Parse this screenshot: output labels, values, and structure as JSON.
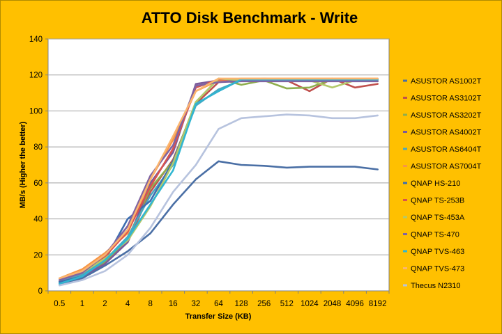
{
  "chart_data": {
    "type": "line",
    "title": "ATTO Disk Benchmark - Write",
    "xlabel": "Transfer Size (KB)",
    "ylabel": "MB/s (Higher the better)",
    "ylim": [
      0,
      140
    ],
    "yticks": [
      0,
      20,
      40,
      60,
      80,
      100,
      120,
      140
    ],
    "grid": "horizontal",
    "legend_position": "right",
    "categories": [
      "0.5",
      "1",
      "2",
      "4",
      "8",
      "16",
      "32",
      "64",
      "128",
      "256",
      "512",
      "1024",
      "2048",
      "4096",
      "8192"
    ],
    "series": [
      {
        "name": "ASUSTOR AS1002T",
        "color": "#4a6fa5",
        "values": [
          4,
          7,
          14,
          22,
          32,
          48,
          62,
          72,
          70,
          69.5,
          68.5,
          69,
          69,
          69,
          67.5
        ]
      },
      {
        "name": "ASUSTOR AS3102T",
        "color": "#c0504d",
        "values": [
          5,
          9,
          16,
          27,
          55,
          73,
          104,
          116,
          117,
          118,
          117,
          111,
          118,
          113,
          115
        ]
      },
      {
        "name": "ASUSTOR AS3202T",
        "color": "#8fae4e",
        "values": [
          5,
          9,
          16,
          29,
          57,
          72,
          105,
          118,
          114.5,
          117,
          112.5,
          113,
          117.5,
          117.5,
          117
        ]
      },
      {
        "name": "ASUSTOR AS4002T",
        "color": "#7a5a9a",
        "values": [
          5,
          8,
          15,
          27,
          60,
          77,
          115,
          117,
          117,
          117,
          117,
          117,
          117,
          117,
          117
        ]
      },
      {
        "name": "ASUSTOR AS6404T",
        "color": "#4aa8c0",
        "values": [
          5,
          9,
          17,
          30,
          53,
          70,
          103,
          112,
          117,
          117,
          117,
          117,
          117,
          117,
          117
        ]
      },
      {
        "name": "ASUSTOR AS7004T",
        "color": "#f79646",
        "values": [
          7,
          12,
          21,
          32,
          62,
          84,
          111,
          117,
          118,
          118,
          118,
          118,
          118,
          118,
          118
        ]
      },
      {
        "name": "QNAP HS-210",
        "color": "#3d6eb0",
        "values": [
          5,
          8,
          17,
          40,
          50,
          72,
          104,
          111,
          117.5,
          117.5,
          117.5,
          117.5,
          117.5,
          117.5,
          117.5
        ]
      },
      {
        "name": "QNAP TS-253B",
        "color": "#d9534f",
        "values": [
          6,
          10,
          19,
          33,
          58,
          79,
          113,
          117.5,
          117.5,
          117.5,
          117.5,
          117.5,
          117.5,
          117.5,
          117.5
        ]
      },
      {
        "name": "QNAP TS-453A",
        "color": "#b3c96b",
        "values": [
          6,
          10,
          18,
          28,
          47,
          71,
          105,
          118,
          117,
          117,
          117,
          117,
          113,
          117,
          117
        ]
      },
      {
        "name": "QNAP TS-470",
        "color": "#8064a2",
        "values": [
          6,
          10,
          20,
          36,
          64,
          81,
          114,
          116,
          116.5,
          116.5,
          116.5,
          116.5,
          116.5,
          116.5,
          116.5
        ]
      },
      {
        "name": "QNAP TVS-463",
        "color": "#31b6d1",
        "values": [
          4,
          8,
          17,
          29,
          48,
          67,
          104,
          111,
          117.5,
          117.5,
          117.5,
          117.5,
          117.5,
          117.5,
          117.5
        ]
      },
      {
        "name": "QNAP TVS-473",
        "color": "#fbb56f",
        "values": [
          7,
          11,
          20,
          34,
          62,
          86,
          111,
          118,
          118,
          118,
          118,
          118,
          118,
          118,
          118
        ]
      },
      {
        "name": "Thecus N2310",
        "color": "#b7c3de",
        "values": [
          3,
          6,
          11,
          20,
          35,
          55,
          70,
          90,
          96,
          97,
          98,
          97.5,
          96,
          96,
          97.5
        ]
      }
    ]
  }
}
